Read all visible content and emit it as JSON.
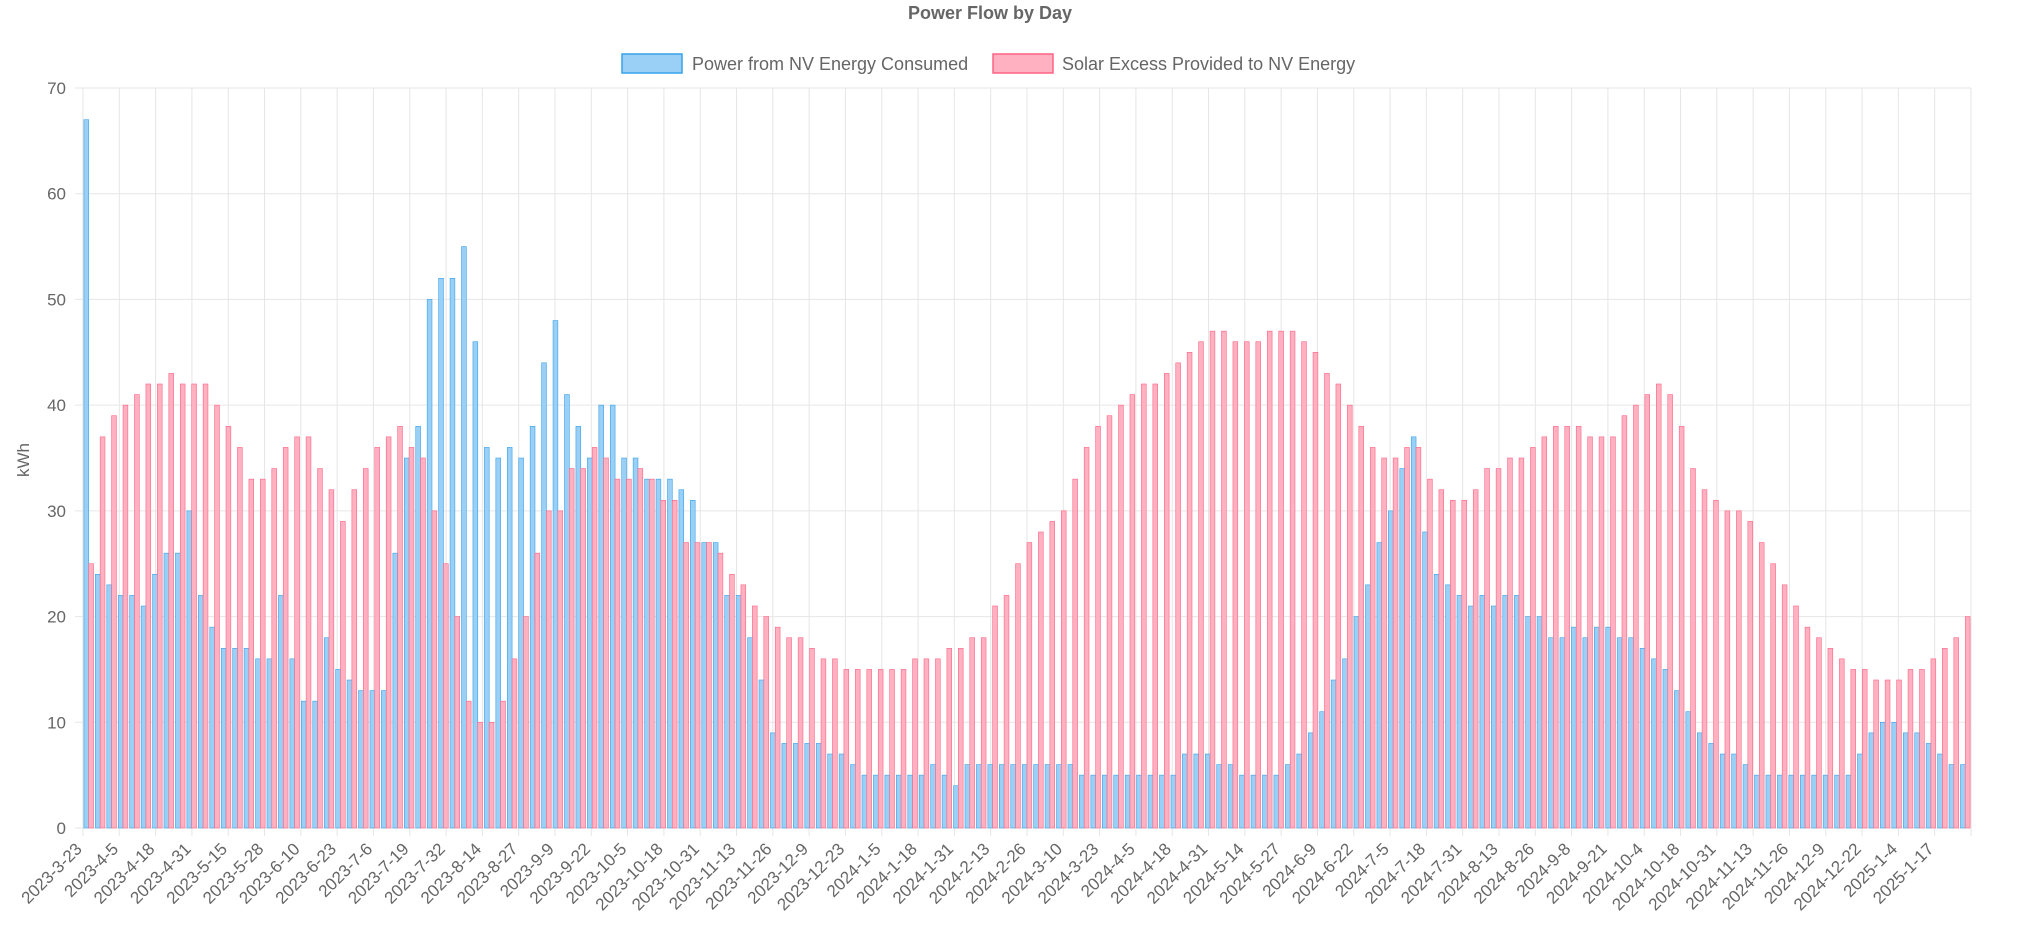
{
  "chart_data": {
    "type": "bar",
    "title": "Power Flow by Day",
    "xlabel": "",
    "ylabel": "kWh",
    "ylim": [
      0,
      70
    ],
    "yticks": [
      0,
      10,
      20,
      30,
      40,
      50,
      60,
      70
    ],
    "grid": true,
    "legend_position": "top",
    "tick_labels": [
      "2023-3-23",
      "2023-4-5",
      "2023-4-18",
      "2023-4-31",
      "2023-5-15",
      "2023-5-28",
      "2023-6-10",
      "2023-6-23",
      "2023-7-6",
      "2023-7-19",
      "2023-7-32",
      "2023-8-14",
      "2023-8-27",
      "2023-9-9",
      "2023-9-22",
      "2023-10-5",
      "2023-10-18",
      "2023-10-31",
      "2023-11-13",
      "2023-11-26",
      "2023-12-9",
      "2023-12-23",
      "2024-1-5",
      "2024-1-18",
      "2024-1-31",
      "2024-2-13",
      "2024-2-26",
      "2024-3-10",
      "2024-3-23",
      "2024-4-5",
      "2024-4-18",
      "2024-4-31",
      "2024-5-14",
      "2024-5-27",
      "2024-6-9",
      "2024-6-22",
      "2024-7-5",
      "2024-7-18",
      "2024-7-31",
      "2024-8-13",
      "2024-8-26",
      "2024-9-8",
      "2024-9-21",
      "2024-10-4",
      "2024-10-18",
      "2024-10-31",
      "2024-11-13",
      "2024-11-26",
      "2024-12-9",
      "2024-12-22",
      "2025-1-4",
      "2025-1-17"
    ],
    "series": [
      {
        "name": "Power from NV Energy Consumed",
        "color": "#36a2eb",
        "fill": "#9ad0f5",
        "values": [
          67,
          24,
          23,
          22,
          22,
          21,
          24,
          26,
          26,
          30,
          22,
          19,
          17,
          17,
          17,
          16,
          16,
          22,
          16,
          12,
          12,
          18,
          15,
          14,
          13,
          13,
          13,
          26,
          35,
          38,
          50,
          52,
          52,
          55,
          46,
          36,
          35,
          36,
          35,
          38,
          44,
          48,
          41,
          38,
          35,
          40,
          40,
          35,
          35,
          33,
          33,
          33,
          32,
          31,
          27,
          27,
          22,
          22,
          18,
          14,
          9,
          8,
          8,
          8,
          8,
          7,
          7,
          6,
          5,
          5,
          5,
          5,
          5,
          5,
          6,
          5,
          4,
          6,
          6,
          6,
          6,
          6,
          6,
          6,
          6,
          6,
          6,
          5,
          5,
          5,
          5,
          5,
          5,
          5,
          5,
          5,
          7,
          7,
          7,
          6,
          6,
          5,
          5,
          5,
          5,
          6,
          7,
          9,
          11,
          14,
          16,
          20,
          23,
          27,
          30,
          34,
          37,
          28,
          24,
          23,
          22,
          21,
          22,
          21,
          22,
          22,
          20,
          20,
          18,
          18,
          19,
          18,
          19,
          19,
          18,
          18,
          17,
          16,
          15,
          13,
          11,
          9,
          8,
          7,
          7,
          6,
          5,
          5,
          5,
          5,
          5,
          5,
          5,
          5,
          5,
          7,
          9,
          10,
          10,
          9,
          9,
          8,
          7,
          6,
          6
        ]
      },
      {
        "name": "Solar Excess Provided to NV Energy",
        "color": "#ff6384",
        "fill": "#ffb1c1",
        "values": [
          25,
          37,
          39,
          40,
          41,
          42,
          42,
          43,
          42,
          42,
          42,
          40,
          38,
          36,
          33,
          33,
          34,
          36,
          37,
          37,
          34,
          32,
          29,
          32,
          34,
          36,
          37,
          38,
          36,
          35,
          30,
          25,
          20,
          12,
          10,
          10,
          12,
          16,
          20,
          26,
          30,
          30,
          34,
          34,
          36,
          35,
          33,
          33,
          34,
          33,
          31,
          31,
          27,
          27,
          27,
          26,
          24,
          23,
          21,
          20,
          19,
          18,
          18,
          17,
          16,
          16,
          15,
          15,
          15,
          15,
          15,
          15,
          16,
          16,
          16,
          17,
          17,
          18,
          18,
          21,
          22,
          25,
          27,
          28,
          29,
          30,
          33,
          36,
          38,
          39,
          40,
          41,
          42,
          42,
          43,
          44,
          45,
          46,
          47,
          47,
          46,
          46,
          46,
          47,
          47,
          47,
          46,
          45,
          43,
          42,
          40,
          38,
          36,
          35,
          35,
          36,
          36,
          33,
          32,
          31,
          31,
          32,
          34,
          34,
          35,
          35,
          36,
          37,
          38,
          38,
          38,
          37,
          37,
          37,
          39,
          40,
          41,
          42,
          41,
          38,
          34,
          32,
          31,
          30,
          30,
          29,
          27,
          25,
          23,
          21,
          19,
          18,
          17,
          16,
          15,
          15,
          14,
          14,
          14,
          15,
          15,
          16,
          17,
          18,
          20
        ]
      }
    ]
  }
}
